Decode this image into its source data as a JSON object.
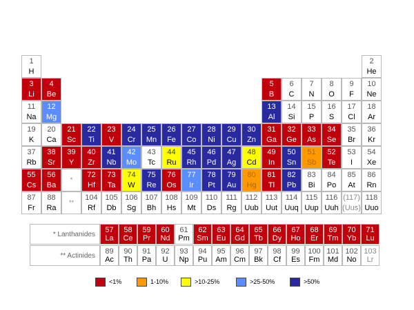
{
  "colors": {
    "red": "#c0000a",
    "orange": "#ff9900",
    "yellow": "#ffff00",
    "lightblue": "#5b8dff",
    "darkblue": "#2a2aa0",
    "white": "#ffffff"
  },
  "elements": [
    {
      "n": "1",
      "s": "H",
      "c": "white",
      "r": 1,
      "g": 1
    },
    {
      "n": "2",
      "s": "He",
      "c": "white",
      "r": 1,
      "g": 18
    },
    {
      "n": "3",
      "s": "Li",
      "c": "red",
      "r": 2,
      "g": 1
    },
    {
      "n": "4",
      "s": "Be",
      "c": "red",
      "r": 2,
      "g": 2
    },
    {
      "n": "5",
      "s": "B",
      "c": "red",
      "r": 2,
      "g": 13
    },
    {
      "n": "6",
      "s": "C",
      "c": "white",
      "r": 2,
      "g": 14
    },
    {
      "n": "7",
      "s": "N",
      "c": "white",
      "r": 2,
      "g": 15
    },
    {
      "n": "8",
      "s": "O",
      "c": "white",
      "r": 2,
      "g": 16
    },
    {
      "n": "9",
      "s": "F",
      "c": "white",
      "r": 2,
      "g": 17
    },
    {
      "n": "10",
      "s": "Ne",
      "c": "white",
      "r": 2,
      "g": 18
    },
    {
      "n": "11",
      "s": "Na",
      "c": "white",
      "r": 3,
      "g": 1
    },
    {
      "n": "12",
      "s": "Mg",
      "c": "lightblue",
      "r": 3,
      "g": 2
    },
    {
      "n": "13",
      "s": "Al",
      "c": "darkblue",
      "r": 3,
      "g": 13
    },
    {
      "n": "14",
      "s": "Si",
      "c": "white",
      "r": 3,
      "g": 14
    },
    {
      "n": "15",
      "s": "P",
      "c": "white",
      "r": 3,
      "g": 15
    },
    {
      "n": "16",
      "s": "S",
      "c": "white",
      "r": 3,
      "g": 16
    },
    {
      "n": "17",
      "s": "Cl",
      "c": "white",
      "r": 3,
      "g": 17
    },
    {
      "n": "18",
      "s": "Ar",
      "c": "white",
      "r": 3,
      "g": 18
    },
    {
      "n": "19",
      "s": "K",
      "c": "white",
      "r": 4,
      "g": 1
    },
    {
      "n": "20",
      "s": "Ca",
      "c": "white",
      "r": 4,
      "g": 2
    },
    {
      "n": "21",
      "s": "Sc",
      "c": "red",
      "r": 4,
      "g": 3
    },
    {
      "n": "22",
      "s": "Ti",
      "c": "darkblue",
      "r": 4,
      "g": 4
    },
    {
      "n": "23",
      "s": "V",
      "c": "red",
      "r": 4,
      "g": 5
    },
    {
      "n": "24",
      "s": "Cr",
      "c": "darkblue",
      "r": 4,
      "g": 6
    },
    {
      "n": "25",
      "s": "Mn",
      "c": "darkblue",
      "r": 4,
      "g": 7
    },
    {
      "n": "26",
      "s": "Fe",
      "c": "darkblue",
      "r": 4,
      "g": 8
    },
    {
      "n": "27",
      "s": "Co",
      "c": "darkblue",
      "r": 4,
      "g": 9
    },
    {
      "n": "28",
      "s": "Ni",
      "c": "darkblue",
      "r": 4,
      "g": 10
    },
    {
      "n": "29",
      "s": "Cu",
      "c": "darkblue",
      "r": 4,
      "g": 11
    },
    {
      "n": "30",
      "s": "Zn",
      "c": "darkblue",
      "r": 4,
      "g": 12
    },
    {
      "n": "31",
      "s": "Ga",
      "c": "red",
      "r": 4,
      "g": 13
    },
    {
      "n": "32",
      "s": "Ge",
      "c": "red",
      "r": 4,
      "g": 14
    },
    {
      "n": "33",
      "s": "As",
      "c": "red",
      "r": 4,
      "g": 15
    },
    {
      "n": "34",
      "s": "Se",
      "c": "red",
      "r": 4,
      "g": 16
    },
    {
      "n": "35",
      "s": "Br",
      "c": "white",
      "r": 4,
      "g": 17
    },
    {
      "n": "36",
      "s": "Kr",
      "c": "white",
      "r": 4,
      "g": 18
    },
    {
      "n": "37",
      "s": "Rb",
      "c": "white",
      "r": 5,
      "g": 1
    },
    {
      "n": "38",
      "s": "Sr",
      "c": "red",
      "r": 5,
      "g": 2
    },
    {
      "n": "39",
      "s": "Y",
      "c": "red",
      "r": 5,
      "g": 3
    },
    {
      "n": "40",
      "s": "Zr",
      "c": "red",
      "r": 5,
      "g": 4
    },
    {
      "n": "41",
      "s": "Nb",
      "c": "darkblue",
      "r": 5,
      "g": 5
    },
    {
      "n": "42",
      "s": "Mo",
      "c": "lightblue",
      "r": 5,
      "g": 6
    },
    {
      "n": "43",
      "s": "Tc",
      "c": "white",
      "r": 5,
      "g": 7
    },
    {
      "n": "44",
      "s": "Ru",
      "c": "yellow",
      "r": 5,
      "g": 8
    },
    {
      "n": "45",
      "s": "Rh",
      "c": "darkblue",
      "r": 5,
      "g": 9
    },
    {
      "n": "46",
      "s": "Pd",
      "c": "darkblue",
      "r": 5,
      "g": 10
    },
    {
      "n": "47",
      "s": "Ag",
      "c": "darkblue",
      "r": 5,
      "g": 11
    },
    {
      "n": "48",
      "s": "Cd",
      "c": "yellow",
      "r": 5,
      "g": 12
    },
    {
      "n": "49",
      "s": "In",
      "c": "red",
      "r": 5,
      "g": 13
    },
    {
      "n": "50",
      "s": "Sn",
      "c": "darkblue",
      "r": 5,
      "g": 14
    },
    {
      "n": "51",
      "s": "Sb",
      "c": "orange",
      "r": 5,
      "g": 15
    },
    {
      "n": "52",
      "s": "Te",
      "c": "red",
      "r": 5,
      "g": 16
    },
    {
      "n": "53",
      "s": "I",
      "c": "white",
      "r": 5,
      "g": 17
    },
    {
      "n": "54",
      "s": "Xe",
      "c": "white",
      "r": 5,
      "g": 18
    },
    {
      "n": "55",
      "s": "Cs",
      "c": "red",
      "r": 6,
      "g": 1
    },
    {
      "n": "56",
      "s": "Ba",
      "c": "red",
      "r": 6,
      "g": 2
    },
    {
      "n": "72",
      "s": "Hf",
      "c": "red",
      "r": 6,
      "g": 4
    },
    {
      "n": "73",
      "s": "Ta",
      "c": "red",
      "r": 6,
      "g": 5
    },
    {
      "n": "74",
      "s": "W",
      "c": "yellow",
      "r": 6,
      "g": 6
    },
    {
      "n": "75",
      "s": "Re",
      "c": "darkblue",
      "r": 6,
      "g": 7
    },
    {
      "n": "76",
      "s": "Os",
      "c": "red",
      "r": 6,
      "g": 8
    },
    {
      "n": "77",
      "s": "Ir",
      "c": "lightblue",
      "r": 6,
      "g": 9
    },
    {
      "n": "78",
      "s": "Pt",
      "c": "darkblue",
      "r": 6,
      "g": 10
    },
    {
      "n": "79",
      "s": "Au",
      "c": "darkblue",
      "r": 6,
      "g": 11
    },
    {
      "n": "80",
      "s": "Hg",
      "c": "orange",
      "r": 6,
      "g": 12
    },
    {
      "n": "81",
      "s": "Tl",
      "c": "red",
      "r": 6,
      "g": 13
    },
    {
      "n": "82",
      "s": "Pb",
      "c": "darkblue",
      "r": 6,
      "g": 14
    },
    {
      "n": "83",
      "s": "Bi",
      "c": "white",
      "r": 6,
      "g": 15
    },
    {
      "n": "84",
      "s": "Po",
      "c": "white",
      "r": 6,
      "g": 16
    },
    {
      "n": "85",
      "s": "At",
      "c": "white",
      "r": 6,
      "g": 17
    },
    {
      "n": "86",
      "s": "Rn",
      "c": "white",
      "r": 6,
      "g": 18
    },
    {
      "n": "87",
      "s": "Fr",
      "c": "white",
      "r": 7,
      "g": 1
    },
    {
      "n": "88",
      "s": "Ra",
      "c": "white",
      "r": 7,
      "g": 2
    },
    {
      "n": "104",
      "s": "Rf",
      "c": "white",
      "r": 7,
      "g": 4
    },
    {
      "n": "105",
      "s": "Db",
      "c": "white",
      "r": 7,
      "g": 5
    },
    {
      "n": "106",
      "s": "Sg",
      "c": "white",
      "r": 7,
      "g": 6
    },
    {
      "n": "107",
      "s": "Bh",
      "c": "white",
      "r": 7,
      "g": 7
    },
    {
      "n": "108",
      "s": "Hs",
      "c": "white",
      "r": 7,
      "g": 8
    },
    {
      "n": "109",
      "s": "Mt",
      "c": "white",
      "r": 7,
      "g": 9
    },
    {
      "n": "110",
      "s": "Ds",
      "c": "white",
      "r": 7,
      "g": 10
    },
    {
      "n": "111",
      "s": "Rg",
      "c": "white",
      "r": 7,
      "g": 11
    },
    {
      "n": "112",
      "s": "Uub",
      "c": "white",
      "r": 7,
      "g": 12
    },
    {
      "n": "113",
      "s": "Uut",
      "c": "white",
      "r": 7,
      "g": 13
    },
    {
      "n": "114",
      "s": "Uuq",
      "c": "white",
      "r": 7,
      "g": 14
    },
    {
      "n": "115",
      "s": "Uup",
      "c": "white",
      "r": 7,
      "g": 15
    },
    {
      "n": "116",
      "s": "Uuh",
      "c": "white",
      "r": 7,
      "g": 16
    },
    {
      "n": "(117)",
      "s": "(Uus)",
      "c": "synthetic",
      "r": 7,
      "g": 17
    },
    {
      "n": "118",
      "s": "Uuo",
      "c": "white",
      "r": 7,
      "g": 18
    }
  ],
  "markers": [
    {
      "text": "*",
      "r": 6,
      "g": 3
    },
    {
      "text": "**",
      "r": 7,
      "g": 3
    }
  ],
  "lanthanides": {
    "label": "* Lanthanides",
    "items": [
      {
        "n": "57",
        "s": "La",
        "c": "red"
      },
      {
        "n": "58",
        "s": "Ce",
        "c": "red"
      },
      {
        "n": "59",
        "s": "Pr",
        "c": "red"
      },
      {
        "n": "60",
        "s": "Nd",
        "c": "red"
      },
      {
        "n": "61",
        "s": "Pm",
        "c": "white"
      },
      {
        "n": "62",
        "s": "Sm",
        "c": "red"
      },
      {
        "n": "63",
        "s": "Eu",
        "c": "red"
      },
      {
        "n": "64",
        "s": "Gd",
        "c": "red"
      },
      {
        "n": "65",
        "s": "Tb",
        "c": "red"
      },
      {
        "n": "66",
        "s": "Dy",
        "c": "red"
      },
      {
        "n": "67",
        "s": "Ho",
        "c": "red"
      },
      {
        "n": "68",
        "s": "Er",
        "c": "red"
      },
      {
        "n": "69",
        "s": "Tm",
        "c": "red"
      },
      {
        "n": "70",
        "s": "Yb",
        "c": "red"
      },
      {
        "n": "71",
        "s": "Lu",
        "c": "red"
      }
    ]
  },
  "actinides": {
    "label": "** Actinides",
    "items": [
      {
        "n": "89",
        "s": "Ac",
        "c": "white"
      },
      {
        "n": "90",
        "s": "Th",
        "c": "white"
      },
      {
        "n": "91",
        "s": "Pa",
        "c": "white"
      },
      {
        "n": "92",
        "s": "U",
        "c": "white"
      },
      {
        "n": "93",
        "s": "Np",
        "c": "white"
      },
      {
        "n": "94",
        "s": "Pu",
        "c": "white"
      },
      {
        "n": "95",
        "s": "Am",
        "c": "white"
      },
      {
        "n": "96",
        "s": "Cm",
        "c": "white"
      },
      {
        "n": "97",
        "s": "Bk",
        "c": "white"
      },
      {
        "n": "98",
        "s": "Cf",
        "c": "white"
      },
      {
        "n": "99",
        "s": "Es",
        "c": "white"
      },
      {
        "n": "100",
        "s": "Fm",
        "c": "white"
      },
      {
        "n": "101",
        "s": "Md",
        "c": "white"
      },
      {
        "n": "102",
        "s": "No",
        "c": "white"
      },
      {
        "n": "103",
        "s": "Lr",
        "c": "synthetic"
      }
    ]
  },
  "legend": [
    {
      "label": "<1%",
      "c": "red"
    },
    {
      "label": "1-10%",
      "c": "orange"
    },
    {
      "label": ">10-25%",
      "c": "yellow"
    },
    {
      "label": ">25-50%",
      "c": "lightblue"
    },
    {
      "label": ">50%",
      "c": "darkblue"
    }
  ]
}
